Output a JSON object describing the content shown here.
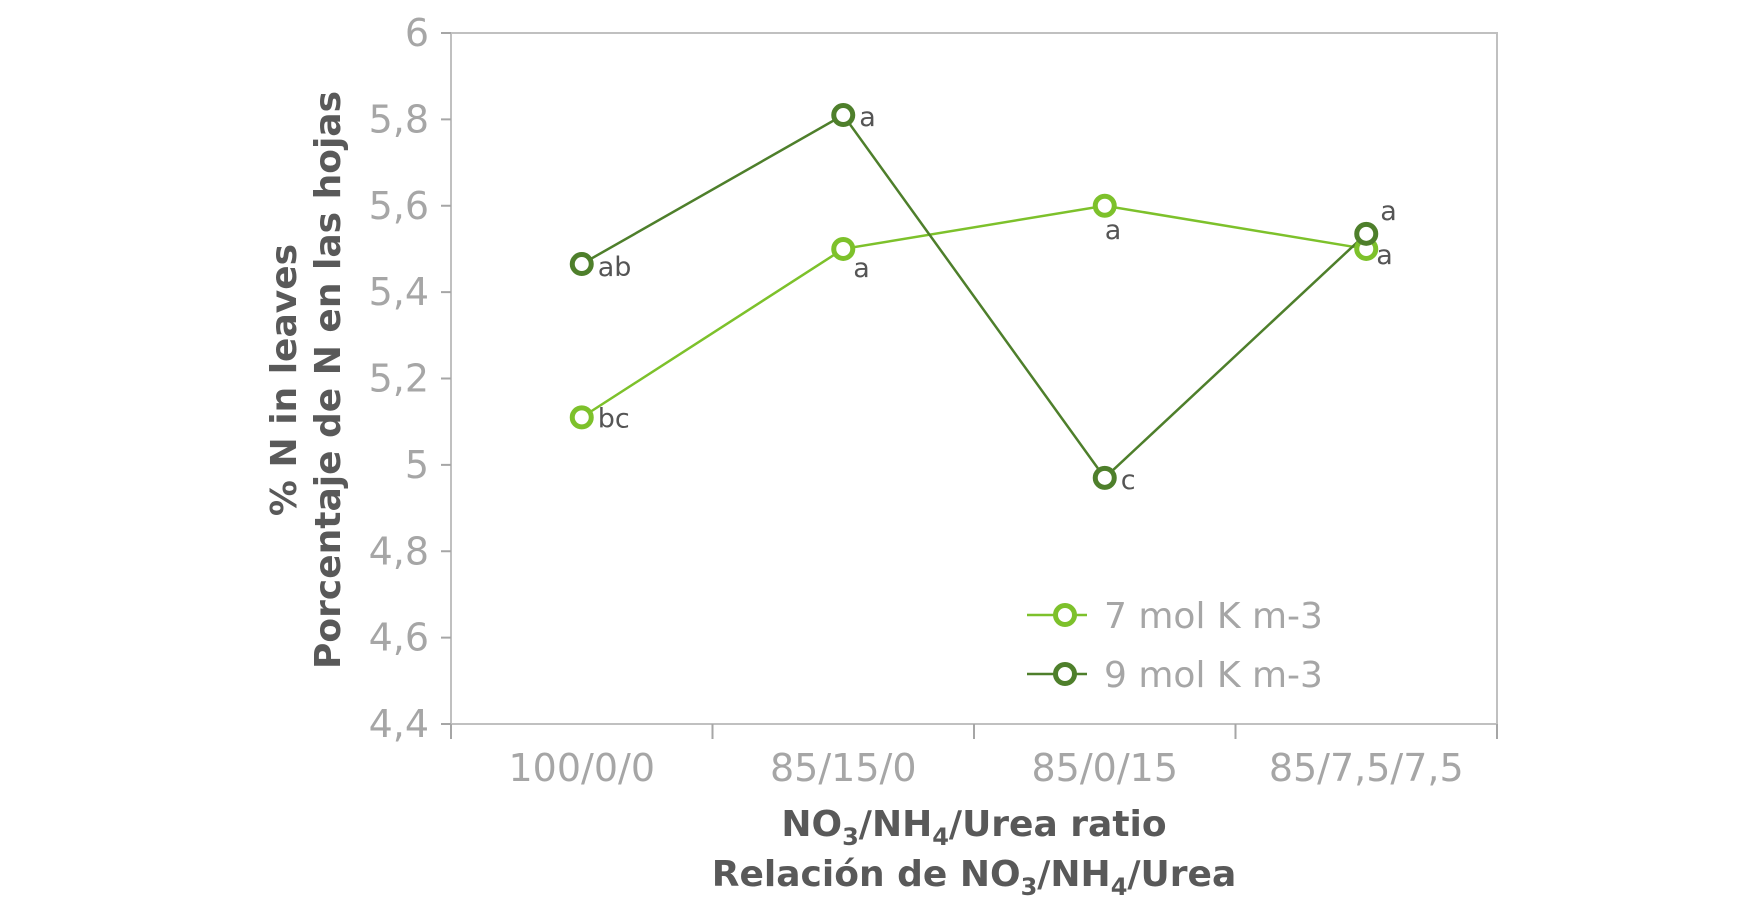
{
  "chart_data": {
    "type": "line",
    "title": "",
    "xlabel": [
      "NO3/NH4/Urea ratio",
      "Relación de NO3/NH4/Urea"
    ],
    "ylabel": [
      "% N in leaves",
      "Porcentaje de N en las hojas"
    ],
    "categories": [
      "100/0/0",
      "85/15/0",
      "85/0/15",
      "85/7,5/7,5"
    ],
    "yticks": [
      "4,4",
      "4,6",
      "4,8",
      "5",
      "5,2",
      "5,4",
      "5,6",
      "5,8",
      "6"
    ],
    "ylim": [
      4.4,
      6.0
    ],
    "grid": false,
    "legend_position": "bottom-right inside",
    "series": [
      {
        "name": "7 mol K m-3",
        "color": "#7dc12b",
        "values": [
          5.11,
          5.5,
          5.6,
          5.5
        ],
        "labels": [
          "bc",
          "a",
          "a",
          "a"
        ]
      },
      {
        "name": "9 mol K m-3",
        "color": "#4e7f2b",
        "values": [
          5.465,
          5.81,
          4.97,
          5.535
        ],
        "labels": [
          "ab",
          "a",
          "c",
          "a"
        ]
      }
    ]
  }
}
